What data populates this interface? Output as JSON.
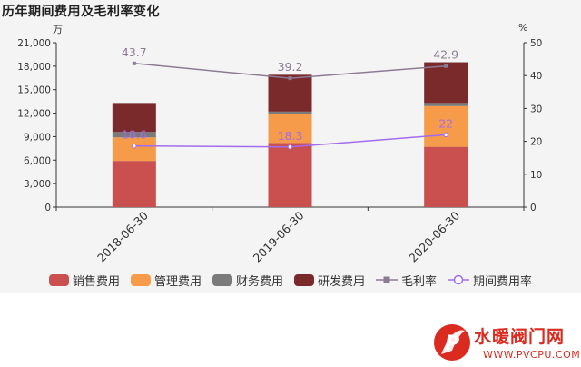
{
  "page": {
    "title": "历年期间费用及毛利率变化",
    "left_unit": "万",
    "right_unit": "%"
  },
  "chart_data": {
    "type": "bar",
    "stacked": true,
    "categories": [
      "2018-06-30",
      "2019-06-30",
      "2020-06-30"
    ],
    "series": [
      {
        "name": "销售费用",
        "values": [
          5900,
          8200,
          7700
        ],
        "color": "#c9504e"
      },
      {
        "name": "管理费用",
        "values": [
          3000,
          3700,
          5200
        ],
        "color": "#f59b4a"
      },
      {
        "name": "财务费用",
        "values": [
          700,
          300,
          400
        ],
        "color": "#7b7b7b"
      },
      {
        "name": "研发费用",
        "values": [
          3700,
          4700,
          5200
        ],
        "color": "#7a2a2b"
      }
    ],
    "line_series": [
      {
        "name": "毛利率",
        "values": [
          43.7,
          39.2,
          42.9
        ],
        "color": "#8c7b93",
        "marker": "square"
      },
      {
        "name": "期间费用率",
        "values": [
          18.6,
          18.3,
          22
        ],
        "color": "#a36cf0",
        "marker": "circle"
      }
    ],
    "line_labels": [
      [
        "43.7",
        "39.2",
        "42.9"
      ],
      [
        "18.6",
        "18.3",
        "22"
      ]
    ],
    "y_left": {
      "min": 0,
      "max": 21000,
      "ticks": [
        "0",
        "3,000",
        "6,000",
        "9,000",
        "12,000",
        "15,000",
        "18,000",
        "21,000"
      ]
    },
    "y_right": {
      "min": 0,
      "max": 50,
      "ticks": [
        "0",
        "10",
        "20",
        "30",
        "40",
        "50"
      ]
    },
    "legend_position": "bottom",
    "grid": false
  },
  "legend": [
    {
      "label": "销售费用",
      "kind": "box",
      "color": "#c9504e"
    },
    {
      "label": "管理费用",
      "kind": "box",
      "color": "#f59b4a"
    },
    {
      "label": "财务费用",
      "kind": "box",
      "color": "#7b7b7b"
    },
    {
      "label": "研发费用",
      "kind": "box",
      "color": "#7a2a2b"
    },
    {
      "label": "毛利率",
      "kind": "line-square",
      "color": "#8c7b93"
    },
    {
      "label": "期间费用率",
      "kind": "line-circle",
      "color": "#a36cf0"
    }
  ],
  "watermark": {
    "name": "水暖阀门网",
    "url": "WWW.PVCPU.COM",
    "logo_letter": "P"
  }
}
